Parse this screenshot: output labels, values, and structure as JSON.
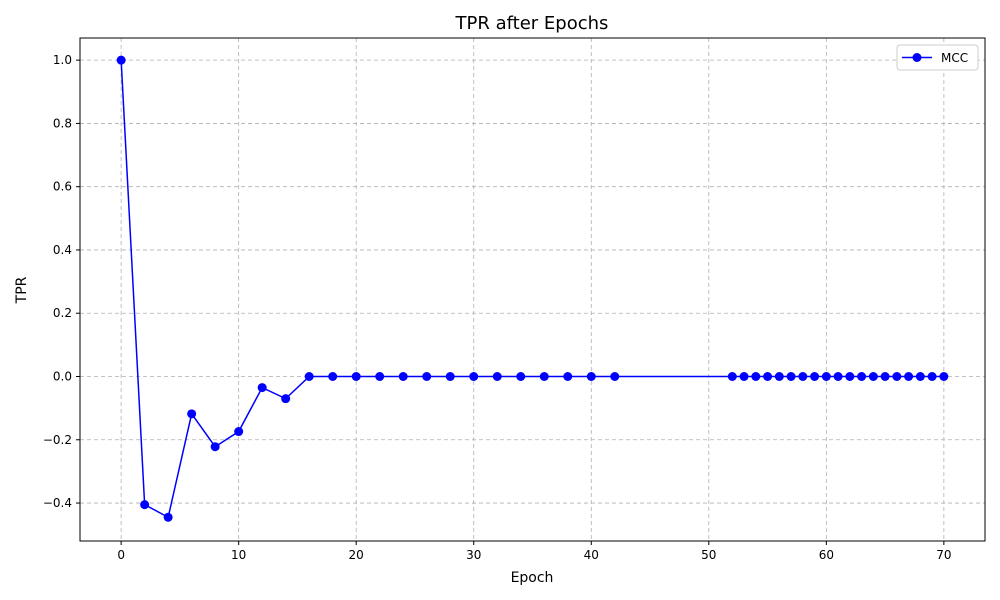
{
  "chart_data": {
    "type": "line",
    "title": "TPR after Epochs",
    "xlabel": "Epoch",
    "ylabel": "TPR",
    "xlim": [
      -3.5,
      73.5
    ],
    "ylim": [
      -0.52,
      1.07
    ],
    "xticks": [
      0,
      10,
      20,
      30,
      40,
      50,
      60,
      70
    ],
    "yticks": [
      -0.4,
      -0.2,
      0.0,
      0.2,
      0.4,
      0.6,
      0.8,
      1.0
    ],
    "xtick_labels": [
      "0",
      "10",
      "20",
      "30",
      "40",
      "50",
      "60",
      "70"
    ],
    "ytick_labels": [
      "−0.4",
      "−0.2",
      "0.0",
      "0.2",
      "0.4",
      "0.6",
      "0.8",
      "1.0"
    ],
    "grid": true,
    "legend_position": "top-right",
    "series": [
      {
        "name": "MCC",
        "color": "#0000ff",
        "marker": "circle",
        "x": [
          0,
          2,
          4,
          6,
          8,
          10,
          12,
          14,
          16,
          18,
          20,
          22,
          24,
          26,
          28,
          30,
          32,
          34,
          36,
          38,
          40,
          42,
          52,
          53,
          54,
          55,
          56,
          57,
          58,
          59,
          60,
          61,
          62,
          63,
          64,
          65,
          66,
          67,
          68,
          69,
          70
        ],
        "y": [
          1.0,
          -0.405,
          -0.445,
          -0.118,
          -0.222,
          -0.174,
          -0.035,
          -0.07,
          0.0,
          0.0,
          0.0,
          0.0,
          0.0,
          0.0,
          0.0,
          0.0,
          0.0,
          0.0,
          0.0,
          0.0,
          0.0,
          0.0,
          0.0,
          0.0,
          0.0,
          0.0,
          0.0,
          0.0,
          0.0,
          0.0,
          0.0,
          0.0,
          0.0,
          0.0,
          0.0,
          0.0,
          0.0,
          0.0,
          0.0,
          0.0,
          0.0
        ]
      }
    ]
  }
}
